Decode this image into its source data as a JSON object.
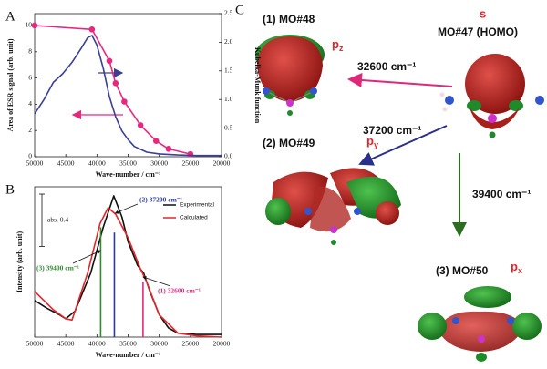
{
  "chart_data": [
    {
      "type": "line",
      "panel_label": "A",
      "x_label": "Wave-number / cm⁻¹",
      "y_label": "Area of ESR signal (arb. unit)",
      "y2_label": "Kubelka-Munk function",
      "xlim": [
        50000,
        20000
      ],
      "xticks": [
        50000,
        45000,
        40000,
        35000,
        30000,
        25000,
        20000
      ],
      "ylim": [
        0,
        10.9
      ],
      "yticks": [
        0,
        2,
        4,
        6,
        8,
        10
      ],
      "y2lim": [
        0,
        2.5
      ],
      "y2ticks": [
        {
          "value": 0,
          "label": "0.0"
        },
        {
          "value": 0.5,
          "label": "0.5"
        },
        {
          "value": 1,
          "label": "1.0"
        },
        {
          "value": 1.5,
          "label": "1.5"
        },
        {
          "value": 2,
          "label": "2.0"
        },
        {
          "value": 2.5,
          "label": "2.5"
        }
      ],
      "series": [
        {
          "color": "#e8287f",
          "marker": "circle",
          "x": [
            50000,
            40800,
            38000,
            37000,
            35600,
            33000,
            30500,
            28500,
            25000
          ],
          "values": [
            10,
            9.7,
            7.3,
            5.6,
            4.2,
            2.4,
            1.2,
            0.6,
            0.2
          ]
        },
        {
          "color": "#3b3f98",
          "axis": "y2",
          "x": [
            50000,
            48500,
            47000,
            45500,
            44000,
            42500,
            41500,
            40800,
            40000,
            39000,
            38000,
            37000,
            36000,
            35000,
            34000,
            32000,
            30000,
            27000,
            24000,
            20000
          ],
          "values": [
            0.75,
            1.0,
            1.3,
            1.45,
            1.65,
            1.9,
            2.08,
            2.12,
            1.95,
            1.55,
            1.05,
            0.7,
            0.45,
            0.3,
            0.18,
            0.08,
            0.05,
            0.03,
            0.02,
            0.02
          ]
        }
      ]
    },
    {
      "type": "line",
      "panel_label": "B",
      "x_label": "Wave-number / cm⁻¹",
      "y_label": "Intensity (arb. unit)",
      "xlim": [
        50000,
        20000
      ],
      "xticks": [
        50000,
        45000,
        40000,
        35000,
        30000,
        25000,
        20000
      ],
      "ylim": [
        0,
        1.15
      ],
      "legend": "upper right",
      "series": [
        {
          "name": "Experimental",
          "color": "#111111",
          "x": [
            50000,
            48000,
            46000,
            45000,
            43500,
            41000,
            39000,
            37300,
            36000,
            35000,
            33500,
            32500,
            31500,
            30000,
            28500,
            27000,
            24000,
            20000
          ],
          "values": [
            0.28,
            0.22,
            0.17,
            0.14,
            0.2,
            0.49,
            0.84,
            1.08,
            0.92,
            0.73,
            0.55,
            0.49,
            0.35,
            0.17,
            0.07,
            0.03,
            0.02,
            0.02
          ]
        },
        {
          "name": "Calculated",
          "color": "#e3262a",
          "x": [
            50000,
            47000,
            45000,
            44000,
            41500,
            39500,
            38200,
            37000,
            35000,
            33000,
            32000,
            30000,
            27000,
            24000,
            20000
          ],
          "values": [
            0.35,
            0.21,
            0.14,
            0.13,
            0.49,
            0.87,
            0.99,
            0.94,
            0.76,
            0.52,
            0.42,
            0.17,
            0.03,
            0.01,
            0
          ]
        }
      ],
      "sticks": [
        {
          "label": "(3) 39400 cm⁻¹",
          "x": 39400,
          "value": 0.84,
          "color": "#2e8b2e"
        },
        {
          "label": "(2) 37200 cm⁻¹",
          "x": 37200,
          "value": 0.8,
          "color": "#2b3a97"
        },
        {
          "label": "(1) 32600 cm⁻¹",
          "x": 32600,
          "value": 0.42,
          "color": "#e0287a"
        }
      ],
      "scale_bar": {
        "label": "abs. 0.4",
        "value": 0.4
      }
    }
  ],
  "diagram": {
    "panel_label": "C",
    "orbitals": [
      {
        "label": "(1) MO#48",
        "symbol": "p",
        "subscript": "z"
      },
      {
        "label": "MO#47 (HOMO)",
        "symbol": "s"
      },
      {
        "label": "(2) MO#49",
        "symbol": "p",
        "subscript": "y"
      },
      {
        "label": "(3) MO#50",
        "symbol": "p",
        "subscript": "x"
      }
    ],
    "transitions": [
      {
        "label": "32600 cm⁻¹"
      },
      {
        "label": "37200 cm⁻¹"
      },
      {
        "label": "39400 cm⁻¹"
      }
    ]
  }
}
